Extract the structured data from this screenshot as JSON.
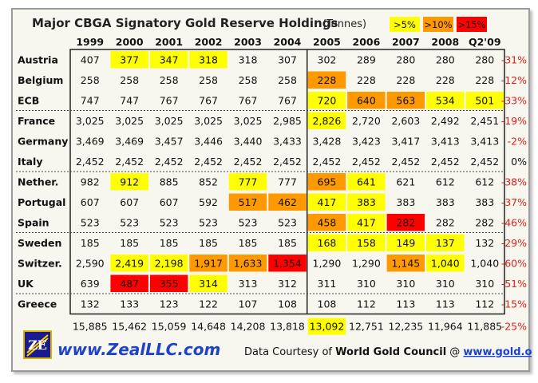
{
  "chart_data": {
    "type": "table",
    "title": "Major CBGA Signatory Gold Reserve Holdings",
    "units": "(Tonnes)",
    "legend": [
      {
        "label": ">5%",
        "color": "#ffff00"
      },
      {
        "label": ">10%",
        "color": "#ff9900"
      },
      {
        "label": ">15%",
        "color": "#ff0000"
      }
    ],
    "columns": [
      "1999",
      "2000",
      "2001",
      "2002",
      "2003",
      "2004",
      "2005",
      "2006",
      "2007",
      "2008",
      "Q2'09"
    ],
    "groups": [
      {
        "rows": [
          {
            "name": "Austria",
            "values": [
              "407",
              "377",
              "347",
              "318",
              "318",
              "307",
              "302",
              "289",
              "280",
              "280",
              "280"
            ],
            "highlights": [
              "",
              "y",
              "y",
              "y",
              "",
              "",
              "",
              "",
              "",
              "",
              ""
            ],
            "change": "-31%"
          },
          {
            "name": "Belgium",
            "values": [
              "258",
              "258",
              "258",
              "258",
              "258",
              "258",
              "228",
              "228",
              "228",
              "228",
              "228"
            ],
            "highlights": [
              "",
              "",
              "",
              "",
              "",
              "",
              "o",
              "",
              "",
              "",
              ""
            ],
            "change": "-12%"
          },
          {
            "name": "ECB",
            "values": [
              "747",
              "747",
              "767",
              "767",
              "767",
              "767",
              "720",
              "640",
              "563",
              "534",
              "501"
            ],
            "highlights": [
              "",
              "",
              "",
              "",
              "",
              "",
              "y",
              "o",
              "o",
              "y",
              "y"
            ],
            "change": "-33%"
          }
        ]
      },
      {
        "rows": [
          {
            "name": "France",
            "values": [
              "3,025",
              "3,025",
              "3,025",
              "3,025",
              "3,025",
              "2,985",
              "2,826",
              "2,720",
              "2,603",
              "2,492",
              "2,451"
            ],
            "highlights": [
              "",
              "",
              "",
              "",
              "",
              "",
              "y",
              "",
              "",
              "",
              ""
            ],
            "change": "-19%"
          },
          {
            "name": "Germany",
            "values": [
              "3,469",
              "3,469",
              "3,457",
              "3,446",
              "3,440",
              "3,433",
              "3,428",
              "3,423",
              "3,417",
              "3,413",
              "3,413"
            ],
            "highlights": [
              "",
              "",
              "",
              "",
              "",
              "",
              "",
              "",
              "",
              "",
              ""
            ],
            "change": "-2%"
          },
          {
            "name": "Italy",
            "values": [
              "2,452",
              "2,452",
              "2,452",
              "2,452",
              "2,452",
              "2,452",
              "2,452",
              "2,452",
              "2,452",
              "2,452",
              "2,452"
            ],
            "highlights": [
              "",
              "",
              "",
              "",
              "",
              "",
              "",
              "",
              "",
              "",
              ""
            ],
            "change": "0%"
          }
        ]
      },
      {
        "rows": [
          {
            "name": "Nether.",
            "values": [
              "982",
              "912",
              "885",
              "852",
              "777",
              "777",
              "695",
              "641",
              "621",
              "612",
              "612"
            ],
            "highlights": [
              "",
              "y",
              "",
              "",
              "y",
              "",
              "o",
              "y",
              "",
              "",
              ""
            ],
            "change": "-38%"
          },
          {
            "name": "Portugal",
            "values": [
              "607",
              "607",
              "607",
              "592",
              "517",
              "462",
              "417",
              "383",
              "383",
              "383",
              "383"
            ],
            "highlights": [
              "",
              "",
              "",
              "",
              "o",
              "o",
              "y",
              "y",
              "",
              "",
              ""
            ],
            "change": "-37%"
          },
          {
            "name": "Spain",
            "values": [
              "523",
              "523",
              "523",
              "523",
              "523",
              "523",
              "458",
              "417",
              "282",
              "282",
              "282"
            ],
            "highlights": [
              "",
              "",
              "",
              "",
              "",
              "",
              "o",
              "y",
              "r",
              "",
              ""
            ],
            "change": "-46%"
          }
        ]
      },
      {
        "rows": [
          {
            "name": "Sweden",
            "values": [
              "185",
              "185",
              "185",
              "185",
              "185",
              "185",
              "168",
              "158",
              "149",
              "137",
              "132"
            ],
            "highlights": [
              "",
              "",
              "",
              "",
              "",
              "",
              "y",
              "y",
              "y",
              "y",
              ""
            ],
            "change": "-29%"
          },
          {
            "name": "Switzer.",
            "values": [
              "2,590",
              "2,419",
              "2,198",
              "1,917",
              "1,633",
              "1,354",
              "1,290",
              "1,290",
              "1,145",
              "1,040",
              "1,040"
            ],
            "highlights": [
              "",
              "y",
              "y",
              "o",
              "o",
              "r",
              "",
              "",
              "o",
              "y",
              ""
            ],
            "change": "-60%"
          },
          {
            "name": "UK",
            "values": [
              "639",
              "487",
              "355",
              "314",
              "313",
              "312",
              "311",
              "310",
              "310",
              "310",
              "310"
            ],
            "highlights": [
              "",
              "r",
              "r",
              "y",
              "",
              "",
              "",
              "",
              "",
              "",
              ""
            ],
            "change": "-51%"
          }
        ]
      },
      {
        "rows": [
          {
            "name": "Greece",
            "values": [
              "132",
              "133",
              "123",
              "122",
              "107",
              "108",
              "108",
              "112",
              "113",
              "113",
              "112"
            ],
            "highlights": [
              "",
              "",
              "",
              "",
              "",
              "",
              "",
              "",
              "",
              "",
              ""
            ],
            "change": "-15%"
          }
        ]
      }
    ],
    "totals": {
      "values": [
        "15,885",
        "15,462",
        "15,059",
        "14,648",
        "14,208",
        "13,818",
        "13,092",
        "12,751",
        "12,235",
        "11,964",
        "11,885"
      ],
      "highlights": [
        "",
        "",
        "",
        "",
        "",
        "",
        "y",
        "",
        "",
        "",
        ""
      ],
      "change": "-25%"
    }
  },
  "footer": {
    "logo_letters": "ZE",
    "site": "www.ZealLLC.com",
    "credit_prefix": "Data Courtesy of ",
    "credit_source": "World Gold Council",
    "credit_at": " @ ",
    "credit_link": "www.gold.org"
  },
  "colors": {
    "yellow": "#ffff00",
    "orange": "#ff9900",
    "red": "#ff0000",
    "negative": "#e0201c"
  }
}
